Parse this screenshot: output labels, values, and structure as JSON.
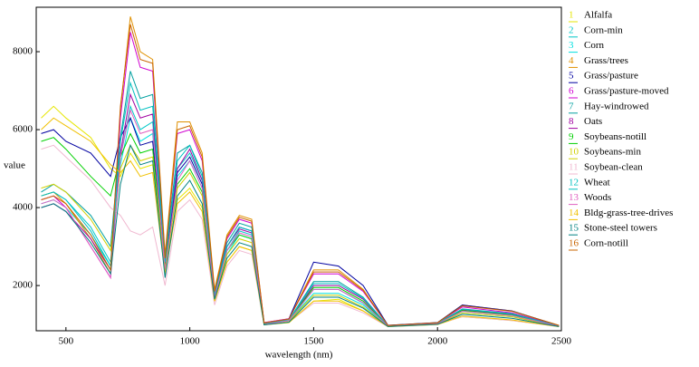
{
  "chart_data": {
    "type": "line",
    "x_label": "wavelength (nm)",
    "y_label": "value",
    "x": [
      400,
      450,
      500,
      600,
      680,
      720,
      760,
      800,
      850,
      900,
      950,
      1000,
      1050,
      1100,
      1150,
      1200,
      1250,
      1300,
      1400,
      1500,
      1600,
      1700,
      1800,
      2000,
      2100,
      2300,
      2490
    ],
    "xlim": [
      380,
      2500
    ],
    "ylim": [
      840,
      9140
    ],
    "xticks": [
      500,
      1000,
      1500,
      2000,
      2500
    ],
    "yticks": [
      2000,
      4000,
      6000,
      8000
    ],
    "series": [
      {
        "key": "1",
        "name": "Alfalfa",
        "color": "#e6e600",
        "values": [
          6300,
          6600,
          6300,
          5800,
          5000,
          4800,
          5400,
          5000,
          5100,
          2400,
          4200,
          4500,
          4000,
          1600,
          2600,
          3000,
          2900,
          1000,
          1050,
          1600,
          1650,
          1350,
          950,
          1000,
          1200,
          1100,
          950
        ]
      },
      {
        "key": "2",
        "name": "Corn-min",
        "color": "#00c8c8",
        "values": [
          4300,
          4400,
          4200,
          3500,
          2600,
          5300,
          6600,
          6000,
          6200,
          2600,
          5000,
          5400,
          4700,
          1700,
          2900,
          3400,
          3300,
          1000,
          1100,
          1900,
          1900,
          1550,
          960,
          1020,
          1350,
          1250,
          960
        ]
      },
      {
        "key": "3",
        "name": "Corn",
        "color": "#00e0e0",
        "values": [
          4100,
          4200,
          4000,
          3300,
          2500,
          5100,
          6300,
          5700,
          5900,
          2500,
          4800,
          5200,
          4500,
          1700,
          2800,
          3300,
          3200,
          1000,
          1100,
          1800,
          1800,
          1500,
          950,
          1010,
          1300,
          1200,
          950
        ]
      },
      {
        "key": "4",
        "name": "Grass/trees",
        "color": "#e09000",
        "values": [
          4300,
          4400,
          4100,
          3200,
          2300,
          6500,
          8900,
          8000,
          7800,
          2800,
          6200,
          6200,
          5400,
          1900,
          3300,
          3800,
          3700,
          1050,
          1150,
          2400,
          2400,
          1900,
          980,
          1050,
          1500,
          1350,
          980
        ]
      },
      {
        "key": "5",
        "name": "Grass/pasture",
        "color": "#0000a0",
        "values": [
          5900,
          6000,
          5700,
          5400,
          4800,
          5800,
          6300,
          5600,
          5700,
          2600,
          4900,
          5300,
          4600,
          1800,
          3000,
          3500,
          3400,
          1000,
          1150,
          2600,
          2500,
          2000,
          980,
          1050,
          1500,
          1350,
          970
        ]
      },
      {
        "key": "6",
        "name": "Grass/pasture-moved",
        "color": "#d000d0",
        "values": [
          4200,
          4300,
          4000,
          3000,
          2200,
          6300,
          8500,
          7600,
          7500,
          2700,
          5900,
          6000,
          5200,
          1800,
          3200,
          3700,
          3600,
          1050,
          1150,
          2300,
          2300,
          1850,
          970,
          1040,
          1450,
          1300,
          970
        ]
      },
      {
        "key": "7",
        "name": "Hay-windrowed",
        "color": "#00a0a0",
        "values": [
          4400,
          4600,
          4400,
          3800,
          3000,
          5800,
          7500,
          6800,
          6900,
          2700,
          5400,
          5600,
          4900,
          1800,
          3100,
          3600,
          3500,
          1020,
          1120,
          2100,
          2100,
          1700,
          960,
          1030,
          1400,
          1280,
          960
        ]
      },
      {
        "key": "8",
        "name": "Oats",
        "color": "#a000a0",
        "values": [
          4000,
          4100,
          3900,
          3200,
          2400,
          5400,
          6900,
          6300,
          6400,
          2600,
          5000,
          5500,
          4700,
          1750,
          3000,
          3450,
          3350,
          1010,
          1100,
          2000,
          2000,
          1650,
          960,
          1020,
          1380,
          1260,
          960
        ]
      },
      {
        "key": "9",
        "name": "Soybeans-notill",
        "color": "#00d000",
        "values": [
          5700,
          5800,
          5500,
          4800,
          4300,
          5300,
          5900,
          5400,
          5500,
          2500,
          4600,
          5000,
          4400,
          1700,
          2900,
          3300,
          3200,
          1000,
          1100,
          1950,
          1950,
          1600,
          955,
          1020,
          1360,
          1240,
          955
        ]
      },
      {
        "key": "10",
        "name": "Soybeans-min",
        "color": "#d0d000",
        "values": [
          4500,
          4600,
          4400,
          3700,
          2900,
          5000,
          5600,
          5200,
          5300,
          2400,
          4500,
          4900,
          4300,
          1700,
          2800,
          3200,
          3100,
          1000,
          1090,
          1750,
          1750,
          1450,
          950,
          1010,
          1300,
          1200,
          950
        ]
      },
      {
        "key": "11",
        "name": "Soybean-clean",
        "color": "#f0b8d0",
        "values": [
          5500,
          5600,
          5300,
          4700,
          4000,
          3800,
          3400,
          3300,
          3500,
          2000,
          3900,
          4200,
          3700,
          1500,
          2500,
          2900,
          2800,
          990,
          1060,
          1550,
          1550,
          1300,
          945,
          1000,
          1200,
          1100,
          945
        ]
      },
      {
        "key": "12",
        "name": "Wheat",
        "color": "#00c0c0",
        "values": [
          4300,
          4400,
          4200,
          3400,
          2500,
          5700,
          7200,
          6500,
          6600,
          2600,
          5200,
          5600,
          4800,
          1750,
          3000,
          3500,
          3400,
          1010,
          1120,
          2050,
          2050,
          1680,
          960,
          1030,
          1390,
          1270,
          960
        ]
      },
      {
        "key": "13",
        "name": "Woods",
        "color": "#e060c0",
        "values": [
          4100,
          4200,
          4000,
          3000,
          2200,
          5300,
          6500,
          5900,
          6000,
          2400,
          4700,
          5200,
          4500,
          1700,
          2900,
          3350,
          3250,
          1000,
          1100,
          1900,
          1900,
          1560,
          955,
          1020,
          1340,
          1230,
          955
        ]
      },
      {
        "key": "14",
        "name": "Bldg-grass-tree-drives",
        "color": "#f0c000",
        "values": [
          6000,
          6300,
          6100,
          5700,
          5100,
          4900,
          5200,
          4800,
          4900,
          2300,
          4100,
          4400,
          3900,
          1600,
          2600,
          3000,
          2900,
          990,
          1050,
          1600,
          1600,
          1350,
          945,
          1000,
          1220,
          1120,
          945
        ]
      },
      {
        "key": "15",
        "name": "Stone-steel towers",
        "color": "#008080",
        "values": [
          4000,
          4100,
          3900,
          3100,
          2300,
          4600,
          5600,
          5100,
          5200,
          2200,
          4300,
          4700,
          4100,
          1650,
          2700,
          3100,
          3000,
          990,
          1060,
          1700,
          1700,
          1420,
          948,
          1005,
          1260,
          1160,
          948
        ]
      },
      {
        "key": "16",
        "name": "Corn-notill",
        "color": "#c86400",
        "values": [
          4200,
          4300,
          4100,
          3300,
          2400,
          6600,
          8700,
          7800,
          7700,
          2700,
          6000,
          6100,
          5300,
          1850,
          3250,
          3750,
          3650,
          1040,
          1140,
          2350,
          2350,
          1880,
          975,
          1045,
          1480,
          1340,
          975
        ]
      }
    ]
  }
}
